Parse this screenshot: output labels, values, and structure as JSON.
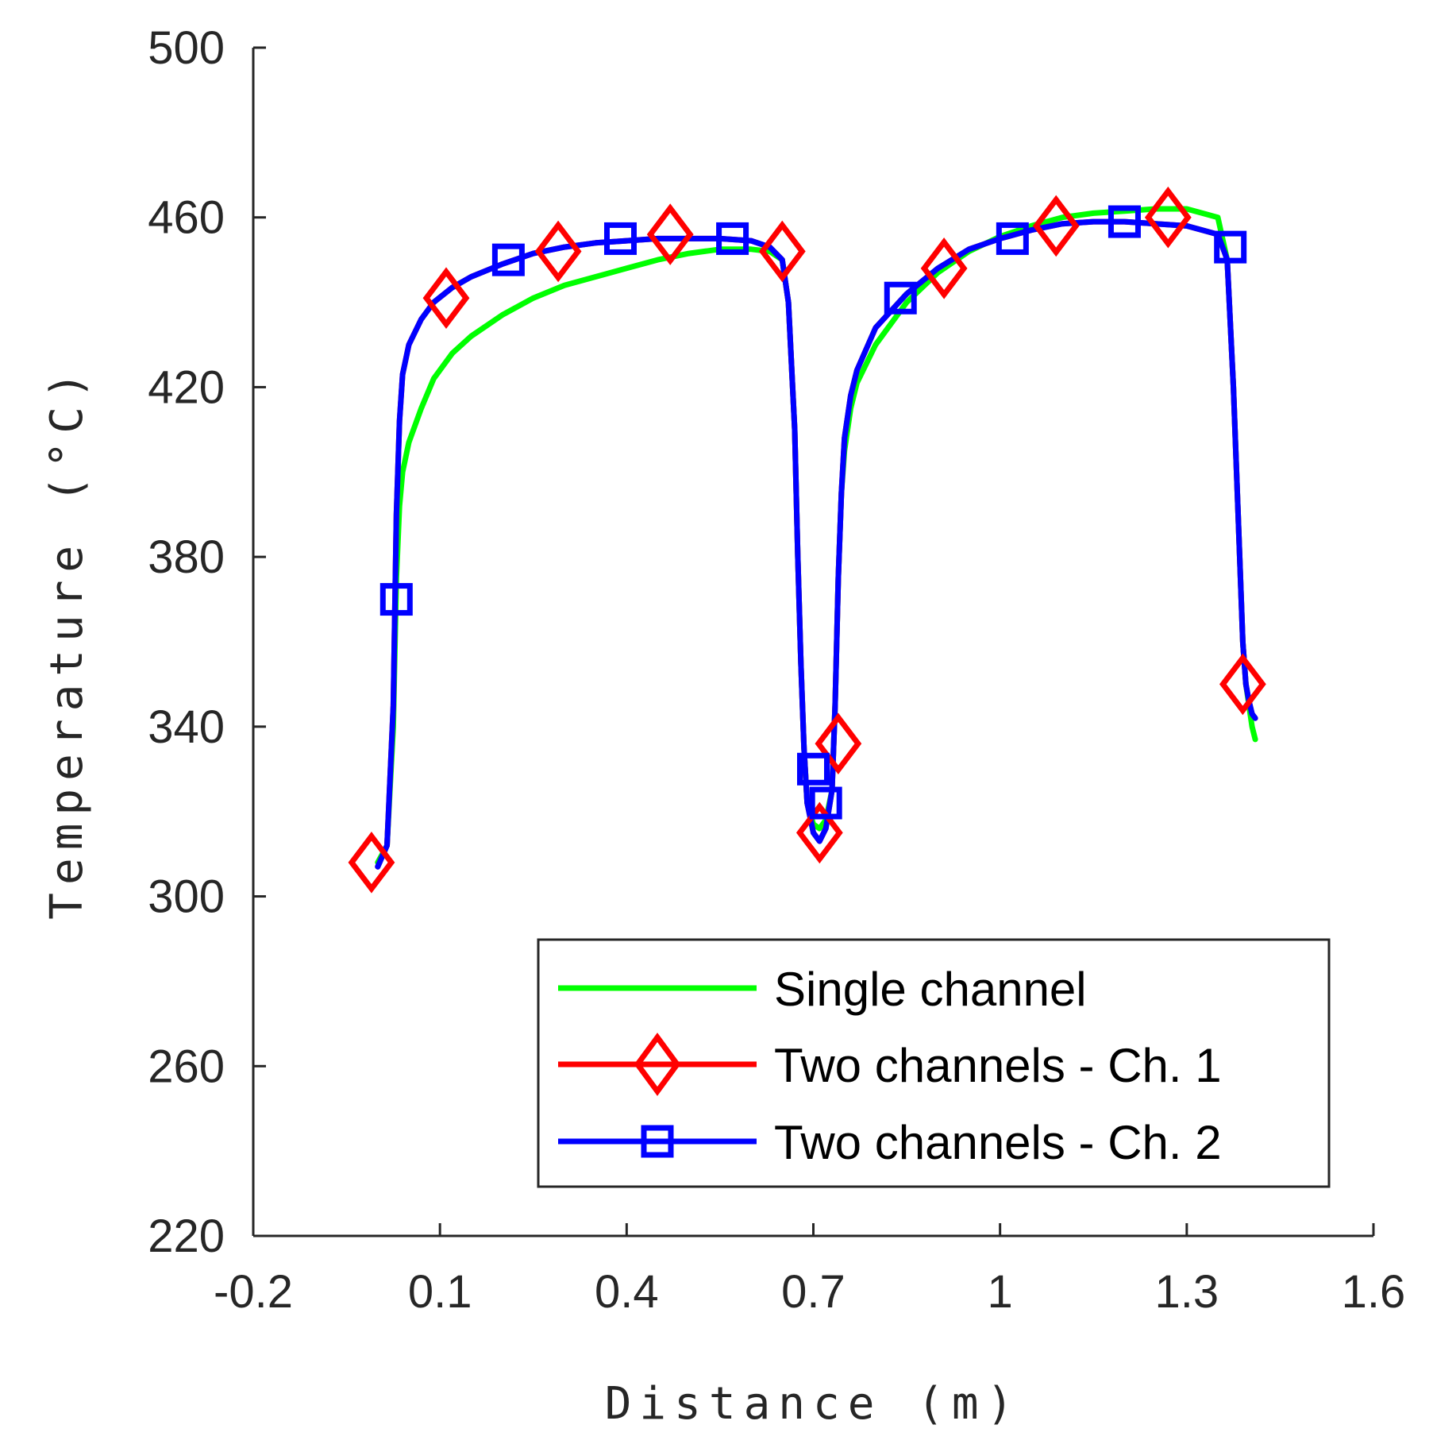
{
  "chart_data": {
    "type": "line",
    "title": "",
    "xlabel": "Distance (m)",
    "ylabel": "Temperature (°C)",
    "xlim": [
      -0.2,
      1.6
    ],
    "ylim": [
      220,
      500
    ],
    "xticks": [
      -0.2,
      0.1,
      0.4,
      0.7,
      1,
      1.3,
      1.6
    ],
    "xtick_labels": [
      "-0.2",
      "0.1",
      "0.4",
      "0.7",
      "1",
      "1.3",
      "1.6"
    ],
    "yticks": [
      220,
      260,
      300,
      340,
      380,
      420,
      460,
      500
    ],
    "ytick_labels": [
      "220",
      "260",
      "300",
      "340",
      "380",
      "420",
      "460",
      "500"
    ],
    "grid": false,
    "legend_position": "bottom-right",
    "series": [
      {
        "name": "Single channel",
        "color": "#00ff00",
        "marker": "none",
        "x": [
          0.0,
          0.015,
          0.025,
          0.03,
          0.035,
          0.04,
          0.05,
          0.07,
          0.09,
          0.12,
          0.15,
          0.2,
          0.25,
          0.3,
          0.35,
          0.4,
          0.45,
          0.5,
          0.55,
          0.6,
          0.63,
          0.65,
          0.66,
          0.67,
          0.675,
          0.68,
          0.685,
          0.69,
          0.7,
          0.71,
          0.72,
          0.73,
          0.735,
          0.74,
          0.745,
          0.75,
          0.76,
          0.77,
          0.8,
          0.85,
          0.9,
          0.95,
          1.0,
          1.05,
          1.1,
          1.15,
          1.2,
          1.25,
          1.3,
          1.35,
          1.365,
          1.375,
          1.385,
          1.39,
          1.395,
          1.4,
          1.405,
          1.41
        ],
        "y": [
          308,
          312,
          340,
          375,
          392,
          400,
          407,
          415,
          422,
          428,
          432,
          437,
          441,
          444,
          446,
          448,
          450,
          451.5,
          452.5,
          452.5,
          452,
          450,
          440,
          410,
          380,
          355,
          335,
          322,
          317,
          316,
          318,
          325,
          345,
          375,
          395,
          405,
          415,
          421,
          430,
          440,
          447,
          452,
          455.5,
          458,
          460,
          461,
          461.5,
          462,
          462,
          460,
          450,
          420,
          380,
          360,
          350,
          345,
          340,
          337
        ]
      },
      {
        "name": "Two channels - Ch. 1",
        "color": "#ff0000",
        "marker": "diamond",
        "x": [
          0.0,
          0.015,
          0.025,
          0.03,
          0.035,
          0.04,
          0.05,
          0.07,
          0.09,
          0.12,
          0.15,
          0.2,
          0.25,
          0.3,
          0.35,
          0.4,
          0.45,
          0.5,
          0.55,
          0.6,
          0.63,
          0.65,
          0.66,
          0.67,
          0.675,
          0.68,
          0.685,
          0.69,
          0.7,
          0.71,
          0.72,
          0.73,
          0.735,
          0.74,
          0.745,
          0.75,
          0.76,
          0.77,
          0.8,
          0.85,
          0.9,
          0.95,
          1.0,
          1.05,
          1.1,
          1.15,
          1.2,
          1.25,
          1.3,
          1.35,
          1.365,
          1.375,
          1.385,
          1.39,
          1.395,
          1.4,
          1.405,
          1.41
        ],
        "y": [
          307,
          312,
          345,
          390,
          412,
          423,
          430,
          436,
          440,
          443.5,
          446,
          449,
          451.5,
          453,
          454,
          454.5,
          455,
          455,
          455,
          454.5,
          453,
          450,
          440,
          410,
          380,
          355,
          335,
          322,
          315,
          313,
          316,
          325,
          345,
          375,
          395,
          408,
          418,
          424,
          434,
          442,
          448,
          452.5,
          455,
          457,
          458.5,
          459,
          459,
          458.5,
          458,
          456,
          450,
          420,
          380,
          360,
          350,
          346,
          343,
          342
        ],
        "marker_x": [
          -0.01,
          0.11,
          0.29,
          0.47,
          0.65,
          0.71,
          0.74,
          0.91,
          1.09,
          1.27,
          1.39
        ],
        "marker_y": [
          308,
          441,
          452,
          456,
          452,
          315,
          336,
          448,
          458,
          460,
          350
        ]
      },
      {
        "name": "Two channels - Ch. 2",
        "color": "#0000ff",
        "marker": "square",
        "x": [
          0.0,
          0.015,
          0.025,
          0.03,
          0.035,
          0.04,
          0.05,
          0.07,
          0.09,
          0.12,
          0.15,
          0.2,
          0.25,
          0.3,
          0.35,
          0.4,
          0.45,
          0.5,
          0.55,
          0.6,
          0.63,
          0.65,
          0.66,
          0.67,
          0.675,
          0.68,
          0.685,
          0.69,
          0.7,
          0.71,
          0.72,
          0.73,
          0.735,
          0.74,
          0.745,
          0.75,
          0.76,
          0.77,
          0.8,
          0.85,
          0.9,
          0.95,
          1.0,
          1.05,
          1.1,
          1.15,
          1.2,
          1.25,
          1.3,
          1.35,
          1.365,
          1.375,
          1.385,
          1.39,
          1.395,
          1.4,
          1.405,
          1.41
        ],
        "y": [
          307,
          312,
          345,
          390,
          412,
          423,
          430,
          436,
          440,
          443.5,
          446,
          449,
          451.5,
          453,
          454,
          454.5,
          455,
          455,
          455,
          454.5,
          453,
          450,
          440,
          410,
          380,
          355,
          335,
          322,
          315,
          313,
          316,
          325,
          345,
          375,
          395,
          408,
          418,
          424,
          434,
          442,
          448,
          452.5,
          455,
          457,
          458.5,
          459,
          459,
          458.5,
          458,
          456,
          450,
          420,
          380,
          360,
          350,
          346,
          343,
          342
        ],
        "marker_x": [
          0.03,
          0.21,
          0.39,
          0.57,
          0.7,
          0.72,
          0.84,
          1.02,
          1.2,
          1.37
        ],
        "marker_y": [
          370,
          450,
          455,
          455,
          330,
          322,
          441,
          455,
          459,
          453
        ]
      }
    ]
  }
}
